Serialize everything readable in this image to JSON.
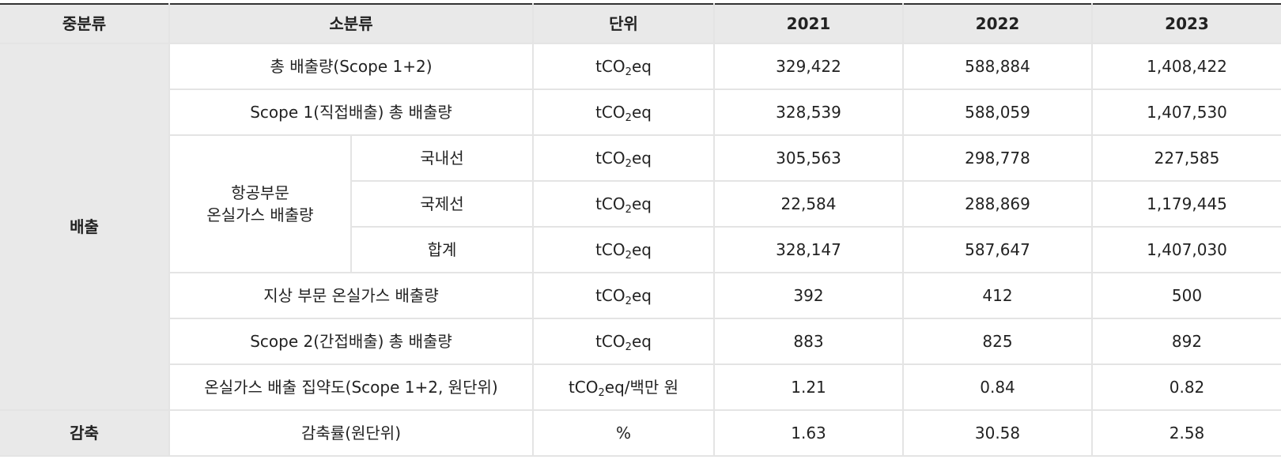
{
  "header": {
    "mid_category": "중분류",
    "sub_category": "소분류",
    "unit": "단위",
    "years": [
      "2021",
      "2022",
      "2023"
    ]
  },
  "unit": {
    "prefix": "tCO",
    "sub": "2",
    "suffix": "eq",
    "intensity_suffix": "eq/백만 원",
    "percent": "%"
  },
  "emission": {
    "category": "배출",
    "total_scope12": {
      "label": "총 배출량(Scope 1+2)",
      "values": [
        "329,422",
        "588,884",
        "1,408,422"
      ]
    },
    "scope1_total": {
      "label": "Scope 1(직접배출) 총 배출량",
      "values": [
        "328,539",
        "588,059",
        "1,407,530"
      ]
    },
    "aviation": {
      "label_line1": "항공부문",
      "label_line2": "온실가스 배출량",
      "domestic": {
        "label": "국내선",
        "values": [
          "305,563",
          "298,778",
          "227,585"
        ]
      },
      "international": {
        "label": "국제선",
        "values": [
          "22,584",
          "288,869",
          "1,179,445"
        ]
      },
      "subtotal": {
        "label": "합계",
        "values": [
          "328,147",
          "587,647",
          "1,407,030"
        ]
      }
    },
    "ground": {
      "label": "지상 부문 온실가스 배출량",
      "values": [
        "392",
        "412",
        "500"
      ]
    },
    "scope2_total": {
      "label": "Scope 2(간접배출) 총 배출량",
      "values": [
        "883",
        "825",
        "892"
      ]
    },
    "intensity": {
      "label": "온실가스 배출 집약도(Scope 1+2, 원단위)",
      "values": [
        "1.21",
        "0.84",
        "0.82"
      ]
    }
  },
  "reduction": {
    "category": "감축",
    "rate": {
      "label": "감축률(원단위)",
      "values": [
        "1.63",
        "30.58",
        "2.58"
      ]
    }
  }
}
